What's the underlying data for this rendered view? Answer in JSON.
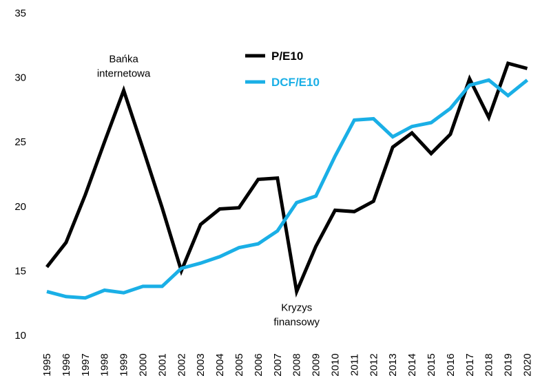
{
  "chart_data": {
    "type": "line",
    "title": "",
    "xlabel": "",
    "ylabel": "",
    "ylim": [
      10,
      35
    ],
    "yticks": [
      10,
      15,
      20,
      25,
      30,
      35
    ],
    "categories": [
      "1995",
      "1996",
      "1997",
      "1998",
      "1999",
      "2000",
      "2001",
      "2002",
      "2003",
      "2004",
      "2005",
      "2006",
      "2007",
      "2008",
      "2009",
      "2010",
      "2011",
      "2012",
      "2013",
      "2014",
      "2015",
      "2016",
      "2017",
      "2018",
      "2019",
      "2020"
    ],
    "series": [
      {
        "name": "P/E10",
        "color": "#000000",
        "values": [
          15.3,
          17.2,
          20.9,
          25.0,
          29.0,
          24.5,
          19.9,
          15.0,
          18.6,
          19.8,
          19.9,
          22.1,
          22.2,
          13.4,
          16.9,
          19.7,
          19.6,
          20.4,
          24.6,
          25.7,
          24.1,
          25.6,
          29.9,
          26.9,
          31.1,
          30.7
        ]
      },
      {
        "name": "DCF/E10",
        "color": "#1aafe6",
        "values": [
          13.4,
          13.0,
          12.9,
          13.5,
          13.3,
          13.8,
          13.8,
          15.2,
          15.6,
          16.1,
          16.8,
          17.1,
          18.1,
          20.3,
          20.8,
          23.9,
          26.7,
          26.8,
          25.4,
          26.2,
          26.5,
          27.6,
          29.4,
          29.8,
          28.6,
          29.8
        ]
      }
    ],
    "legend": {
      "position": "top-right"
    },
    "annotations": [
      {
        "lines": [
          "Bańka",
          "internetowa"
        ],
        "x": "1999",
        "y": 29.0,
        "placement": "above"
      },
      {
        "lines": [
          "Kryzys",
          "finansowy"
        ],
        "x": "2008",
        "y": 13.4,
        "placement": "below"
      }
    ],
    "grid": false
  }
}
